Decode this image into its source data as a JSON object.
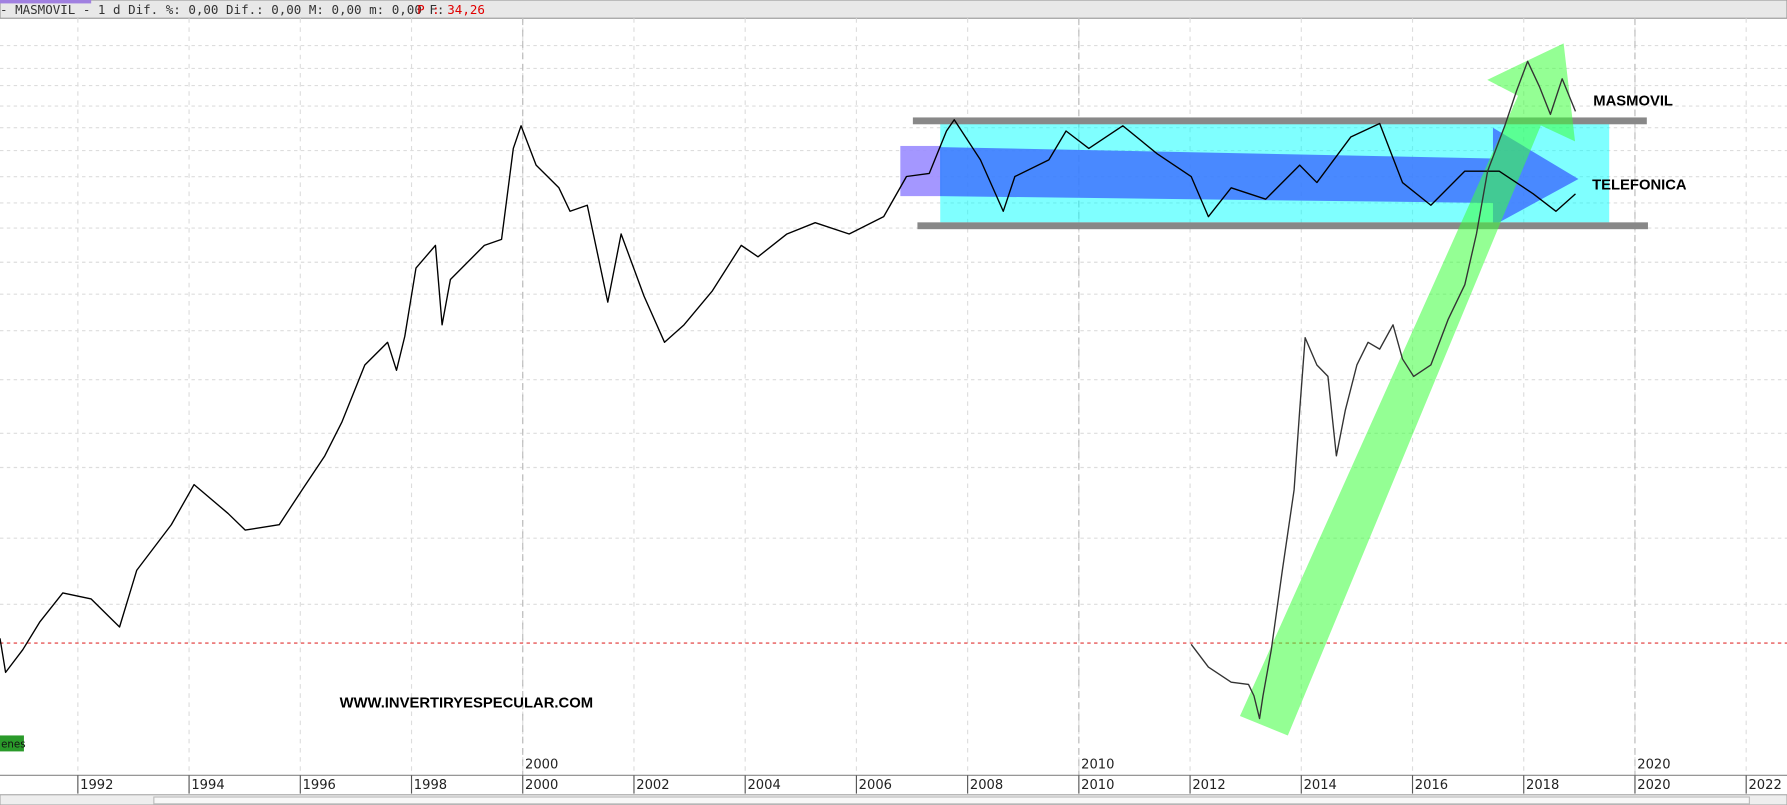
{
  "chart_data": {
    "type": "line",
    "header": "- MASMOVIL -  1 d Dif. %: 0,00 Dif.: 0,00 M: 0,00 m: 0,00 F:",
    "header_price": "P : 34,26",
    "watermark": "WWW.INVERTIRYESPECULAR.COM",
    "volume_label": "enes",
    "xlim": [
      1990.6,
      2022.57
    ],
    "xticks": [
      1992,
      1994,
      1996,
      1998,
      2000,
      2002,
      2004,
      2006,
      2008,
      2010,
      2012,
      2014,
      2016,
      2018,
      2020,
      2022
    ],
    "decade_ticks": [
      2000,
      2010,
      2020
    ],
    "ylim": [
      0,
      100
    ],
    "grid": true,
    "series": [
      {
        "name": "TELEFONICA",
        "color": "#000000",
        "x": [
          1990.6,
          1990.7,
          1991.01,
          1991.32,
          1991.73,
          1992.24,
          1992.75,
          1993.06,
          1993.68,
          1994.09,
          1994.7,
          1995.01,
          1995.62,
          1996.03,
          1996.44,
          1996.75,
          1997.16,
          1997.57,
          1997.73,
          1997.88,
          1998.08,
          1998.43,
          1998.55,
          1998.7,
          1999.31,
          1999.62,
          1999.83,
          1999.97,
          2000.24,
          2000.65,
          2000.85,
          2001.16,
          2001.53,
          2001.77,
          2002.18,
          2002.55,
          2002.9,
          2003.41,
          2003.93,
          2004.23,
          2004.75,
          2005.26,
          2005.87,
          2006.49,
          2006.9,
          2007.31,
          2007.62,
          2007.76,
          2008.23,
          2008.64,
          2008.85,
          2009.46,
          2009.77,
          2010.18,
          2010.79,
          2011.41,
          2012.02,
          2012.33,
          2012.74,
          2013.36,
          2013.97,
          2014.28,
          2014.89,
          2015.41,
          2015.82,
          2016.33,
          2016.94,
          2017.56,
          2018.17,
          2018.58,
          2018.93
        ],
        "values": [
          18.1,
          13.6,
          16.6,
          20.3,
          24.1,
          23.3,
          19.6,
          27.1,
          33.1,
          38.4,
          34.6,
          32.4,
          33.1,
          37.7,
          42.2,
          46.7,
          54.2,
          57.2,
          53.5,
          58.0,
          67.0,
          70.0,
          59.5,
          65.5,
          70.0,
          70.8,
          82.8,
          85.8,
          80.6,
          77.6,
          74.5,
          75.3,
          62.5,
          71.5,
          63.3,
          57.2,
          59.5,
          64.0,
          70.0,
          68.5,
          71.5,
          73.0,
          71.5,
          73.8,
          79.1,
          79.5,
          85.1,
          86.6,
          81.3,
          74.5,
          79.1,
          81.3,
          85.1,
          82.8,
          85.8,
          82.1,
          79.1,
          73.8,
          77.6,
          76.1,
          80.6,
          78.3,
          84.3,
          86.1,
          78.3,
          75.3,
          79.8,
          79.8,
          76.8,
          74.5,
          76.8
        ]
      },
      {
        "name": "MASMOVIL",
        "color": "#333333",
        "x": [
          2012.02,
          2012.33,
          2012.74,
          2013.05,
          2013.15,
          2013.25,
          2013.31,
          2013.46,
          2013.66,
          2013.87,
          2013.97,
          2014.07,
          2014.28,
          2014.48,
          2014.63,
          2014.79,
          2015.0,
          2015.2,
          2015.41,
          2015.65,
          2015.82,
          2016.02,
          2016.33,
          2016.64,
          2016.94,
          2017.15,
          2017.35,
          2017.66,
          2017.87,
          2018.07,
          2018.28,
          2018.48,
          2018.69,
          2018.93
        ],
        "values": [
          17.3,
          14.3,
          12.3,
          12.0,
          10.5,
          7.5,
          10.5,
          16.6,
          27.1,
          37.7,
          48.2,
          57.8,
          54.2,
          52.7,
          42.2,
          48.2,
          54.2,
          57.2,
          56.3,
          59.5,
          55.0,
          52.7,
          54.2,
          60.2,
          64.8,
          71.5,
          79.8,
          85.8,
          90.4,
          94.3,
          91.0,
          87.3,
          92.0,
          87.7
        ]
      }
    ]
  }
}
